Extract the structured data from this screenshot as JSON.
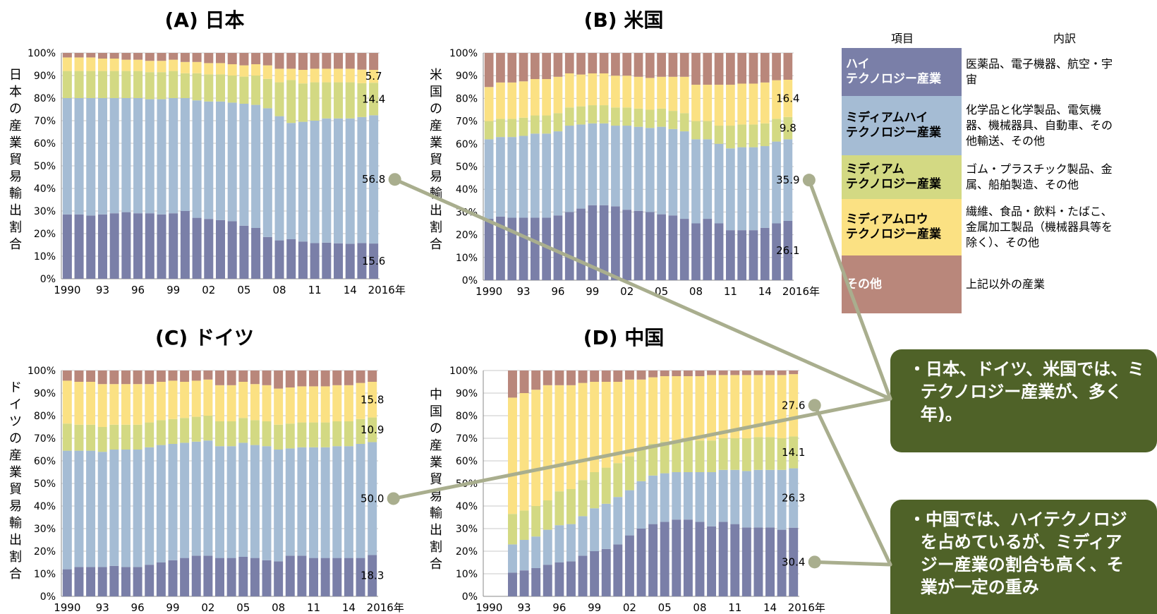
{
  "colors": {
    "high": "#7a7fa8",
    "medium_high": "#a5bcd4",
    "medium": "#d3d983",
    "medium_low": "#fbe183",
    "other": "#b9877b",
    "callout": "#4f6228",
    "connector": "#a9ae8e"
  },
  "chart_data": [
    {
      "type": "bar",
      "stacked": true,
      "title": "(A) 日本",
      "ylabel": "日本の産業貿易輸出割合",
      "ylim": [
        0,
        100
      ],
      "yticks": [
        "0%",
        "10%",
        "20%",
        "30%",
        "40%",
        "50%",
        "60%",
        "70%",
        "80%",
        "90%",
        "100%"
      ],
      "categories": [
        "1990",
        "91",
        "92",
        "93",
        "94",
        "95",
        "96",
        "97",
        "98",
        "99",
        "2000",
        "01",
        "02",
        "03",
        "04",
        "05",
        "06",
        "07",
        "08",
        "09",
        "10",
        "11",
        "12",
        "13",
        "14",
        "15",
        "2016"
      ],
      "xtick_labels": [
        "1990",
        "93",
        "96",
        "99",
        "02",
        "05",
        "08",
        "11",
        "14",
        "2016年"
      ],
      "xtick_indices": [
        0,
        3,
        6,
        9,
        12,
        15,
        18,
        21,
        24,
        26
      ],
      "series": [
        {
          "key": "high",
          "values": [
            28.5,
            28.5,
            28.0,
            28.5,
            29.0,
            29.5,
            29.0,
            29.0,
            28.5,
            29.0,
            30.0,
            27.0,
            26.5,
            26.0,
            25.5,
            23.5,
            22.5,
            18.5,
            17.0,
            17.5,
            16.5,
            15.8,
            16.0,
            15.7,
            15.5,
            15.8,
            15.6
          ]
        },
        {
          "key": "medium_high",
          "values": [
            51.5,
            51.5,
            52.0,
            51.5,
            51.0,
            50.5,
            51.0,
            50.5,
            51.0,
            51.0,
            50.0,
            52.0,
            52.0,
            52.5,
            52.5,
            54.0,
            54.5,
            57.0,
            55.0,
            51.5,
            53.0,
            54.2,
            55.0,
            55.3,
            55.5,
            55.8,
            56.8
          ]
        },
        {
          "key": "medium",
          "values": [
            12,
            12,
            12,
            12,
            12,
            12,
            12,
            12,
            12,
            12,
            11,
            12,
            12,
            12,
            12,
            12,
            13,
            13,
            15,
            19,
            17,
            17,
            16,
            16,
            16,
            15,
            14.4
          ]
        },
        {
          "key": "medium_low",
          "values": [
            6,
            6,
            6,
            5.5,
            5.5,
            5,
            5,
            5,
            5,
            5,
            5,
            5,
            5,
            5,
            5,
            5,
            5,
            6,
            6,
            5,
            6,
            6,
            6,
            6,
            6,
            6,
            5.7
          ]
        },
        {
          "key": "other",
          "values": [
            2,
            2,
            2,
            2.5,
            2.5,
            3,
            3,
            3.5,
            3.5,
            3,
            4,
            4,
            4.5,
            4.5,
            5,
            5.5,
            5,
            5.5,
            7,
            7,
            7.5,
            7,
            7,
            7,
            7,
            7.4,
            7.5
          ]
        }
      ],
      "value_labels": [
        {
          "series": "medium_low",
          "text": "5.7"
        },
        {
          "series": "medium",
          "text": "14.4"
        },
        {
          "series": "medium_high",
          "text": "56.8"
        },
        {
          "series": "high",
          "text": "15.6"
        }
      ]
    },
    {
      "type": "bar",
      "stacked": true,
      "title": "(B) 米国",
      "ylabel": "米国の産業貿易輸出割合",
      "ylim": [
        0,
        100
      ],
      "yticks": [
        "0%",
        "10%",
        "20%",
        "30%",
        "40%",
        "50%",
        "60%",
        "70%",
        "80%",
        "90%",
        "100%"
      ],
      "categories": [
        "1990",
        "91",
        "92",
        "93",
        "94",
        "95",
        "96",
        "97",
        "98",
        "99",
        "2000",
        "01",
        "02",
        "03",
        "04",
        "05",
        "06",
        "07",
        "08",
        "09",
        "10",
        "11",
        "12",
        "13",
        "14",
        "15",
        "2016"
      ],
      "xtick_labels": [
        "1990",
        "93",
        "96",
        "99",
        "02",
        "05",
        "08",
        "11",
        "14",
        "2016年"
      ],
      "xtick_indices": [
        0,
        3,
        6,
        9,
        12,
        15,
        18,
        21,
        24,
        26
      ],
      "series": [
        {
          "key": "high",
          "values": [
            27,
            28,
            27.5,
            27.5,
            27.5,
            27.5,
            28.5,
            30,
            31.5,
            33,
            33,
            32.5,
            31,
            30.5,
            30,
            29,
            28.5,
            27,
            25,
            27,
            25,
            22,
            22,
            22,
            23,
            25,
            26.1
          ]
        },
        {
          "key": "medium_high",
          "values": [
            35,
            35,
            35.5,
            36,
            37,
            37,
            37,
            38,
            37,
            36,
            36,
            35.5,
            37,
            37,
            37,
            38.5,
            38,
            38.5,
            37,
            35,
            35,
            36,
            36.5,
            36.5,
            36,
            36,
            35.9
          ]
        },
        {
          "key": "medium",
          "values": [
            8,
            8,
            8,
            8,
            8,
            8,
            8,
            8,
            8,
            8,
            8,
            8,
            8,
            8,
            8,
            8,
            8,
            8,
            8,
            8,
            8,
            10,
            10,
            10,
            10,
            10,
            9.8
          ]
        },
        {
          "key": "medium_low",
          "values": [
            15,
            16,
            16,
            16,
            16,
            16,
            16,
            15,
            14,
            14,
            14,
            14,
            14,
            14,
            14,
            14,
            15,
            16,
            16,
            16,
            18,
            18,
            18,
            18,
            18,
            17,
            16.4
          ]
        },
        {
          "key": "other",
          "values": [
            15,
            13,
            13,
            12.5,
            11.5,
            11.5,
            10.5,
            9,
            9.5,
            9,
            9,
            10,
            10,
            10.5,
            11,
            10.5,
            10.5,
            10.5,
            14,
            14,
            14,
            14,
            13.5,
            13.5,
            13,
            12,
            11.8
          ]
        }
      ],
      "value_labels": [
        {
          "series": "medium_low",
          "text": "16.4"
        },
        {
          "series": "medium",
          "text": "9.8"
        },
        {
          "series": "medium_high",
          "text": "35.9"
        },
        {
          "series": "high",
          "text": "26.1"
        }
      ]
    },
    {
      "type": "bar",
      "stacked": true,
      "title": "(C) ドイツ",
      "ylabel": "ドイツの産業貿易輸出割合",
      "ylim": [
        0,
        100
      ],
      "yticks": [
        "0%",
        "10%",
        "20%",
        "30%",
        "40%",
        "50%",
        "60%",
        "70%",
        "80%",
        "90%",
        "100%"
      ],
      "categories": [
        "1990",
        "91",
        "92",
        "93",
        "94",
        "95",
        "96",
        "97",
        "98",
        "99",
        "2000",
        "01",
        "02",
        "03",
        "04",
        "05",
        "06",
        "07",
        "08",
        "09",
        "10",
        "11",
        "12",
        "13",
        "14",
        "15",
        "2016"
      ],
      "xtick_labels": [
        "1990",
        "93",
        "96",
        "99",
        "02",
        "05",
        "08",
        "11",
        "14",
        "2016年"
      ],
      "xtick_indices": [
        0,
        3,
        6,
        9,
        12,
        15,
        18,
        21,
        24,
        26
      ],
      "series": [
        {
          "key": "high",
          "values": [
            12,
            13,
            13,
            13,
            13.5,
            13,
            13,
            14,
            15,
            16,
            17,
            18,
            18,
            17,
            17,
            17.5,
            17,
            16,
            15.5,
            18,
            18,
            17,
            17,
            17,
            17,
            17,
            18.3
          ]
        },
        {
          "key": "medium_high",
          "values": [
            52.5,
            51.5,
            51.5,
            51,
            51.5,
            52,
            52,
            52,
            52,
            51.5,
            51,
            50.5,
            51,
            49.5,
            49.5,
            50.5,
            50,
            50.5,
            49.5,
            47.5,
            48,
            49,
            49,
            49.5,
            49.5,
            50.5,
            50
          ]
        },
        {
          "key": "medium",
          "values": [
            12,
            11.5,
            11.5,
            11,
            11,
            11,
            11,
            11,
            11,
            11,
            11,
            11,
            11,
            11,
            11,
            11,
            11,
            11,
            11,
            11,
            11,
            11,
            11,
            11,
            11,
            11,
            10.9
          ]
        },
        {
          "key": "medium_low",
          "values": [
            19,
            19,
            19,
            19,
            18,
            18,
            18,
            17,
            17,
            17,
            16,
            16,
            16,
            16,
            16,
            16,
            16,
            16,
            16,
            16,
            16,
            16,
            16,
            16,
            16,
            16,
            15.8
          ]
        },
        {
          "key": "other",
          "values": [
            4.5,
            5,
            5,
            6,
            6,
            6,
            6,
            6,
            5,
            4.5,
            5,
            4.5,
            4,
            6.5,
            6.5,
            5,
            6,
            6.5,
            8,
            7.5,
            7,
            7,
            7,
            6.5,
            6.5,
            5.5,
            5
          ]
        }
      ],
      "value_labels": [
        {
          "series": "medium_low",
          "text": "15.8"
        },
        {
          "series": "medium",
          "text": "10.9"
        },
        {
          "series": "medium_high",
          "text": "50.0"
        },
        {
          "series": "high",
          "text": "18.3"
        }
      ]
    },
    {
      "type": "bar",
      "stacked": true,
      "title": "(D) 中国",
      "ylabel": "中国の産業貿易輸出割合",
      "ylim": [
        0,
        100
      ],
      "yticks": [
        "0%",
        "10%",
        "20%",
        "30%",
        "40%",
        "50%",
        "60%",
        "70%",
        "80%",
        "90%",
        "100%"
      ],
      "categories": [
        "1990",
        "91",
        "92",
        "93",
        "94",
        "95",
        "96",
        "97",
        "98",
        "99",
        "2000",
        "01",
        "02",
        "03",
        "04",
        "05",
        "06",
        "07",
        "08",
        "09",
        "10",
        "11",
        "12",
        "13",
        "14",
        "15",
        "2016"
      ],
      "xtick_labels": [
        "1990",
        "93",
        "96",
        "99",
        "02",
        "05",
        "08",
        "11",
        "14",
        "2016年"
      ],
      "xtick_indices": [
        0,
        3,
        6,
        9,
        12,
        15,
        18,
        21,
        24,
        26
      ],
      "series": [
        {
          "key": "high",
          "values": [
            0,
            0,
            10.5,
            11.5,
            12.5,
            14,
            15,
            15.5,
            18,
            20,
            21,
            23,
            27,
            30,
            32,
            33,
            34,
            34,
            33,
            31,
            33,
            32,
            30.5,
            30.5,
            30.5,
            29.5,
            30.4
          ]
        },
        {
          "key": "medium_high",
          "values": [
            0,
            0,
            12.5,
            13.5,
            14,
            15.5,
            16.5,
            16.5,
            17.5,
            19,
            20,
            21,
            20,
            21,
            21.5,
            21.5,
            21,
            21,
            22,
            24,
            23,
            24,
            25,
            25.5,
            25.5,
            26.5,
            26.3
          ]
        },
        {
          "key": "medium",
          "values": [
            0,
            0,
            13.5,
            13,
            13.5,
            13,
            15,
            15.5,
            16,
            16,
            16,
            15,
            15,
            14,
            14,
            14,
            14,
            14,
            14,
            14,
            14,
            14,
            14.5,
            14.5,
            14.5,
            14,
            14.1
          ]
        },
        {
          "key": "medium_low",
          "values": [
            0,
            0,
            51.5,
            52,
            51.5,
            51,
            47,
            46,
            43,
            40,
            38,
            36,
            34,
            31,
            29.5,
            29,
            28.5,
            28.5,
            28.5,
            29,
            28,
            28,
            28,
            27.5,
            27.5,
            28,
            27.6
          ]
        },
        {
          "key": "other",
          "values": [
            0,
            0,
            12,
            10,
            8.5,
            6.5,
            6.5,
            6.5,
            5.5,
            5,
            5,
            5,
            4,
            4,
            3,
            2.5,
            2.5,
            2.5,
            2.5,
            2,
            2,
            2,
            2,
            2,
            2,
            2,
            1.6
          ]
        }
      ],
      "value_labels": [
        {
          "series": "medium_low",
          "text": "27.6"
        },
        {
          "series": "medium",
          "text": "14.1"
        },
        {
          "series": "medium_high",
          "text": "26.3"
        },
        {
          "series": "high",
          "text": "30.4"
        }
      ]
    }
  ],
  "legend_table": {
    "header_item": "項目",
    "header_breakdown": "内訳",
    "rows": [
      {
        "key": "high",
        "category": "ハイ\nテクノロジー産業",
        "breakdown": "医薬品、電子機器、航空・宇\n宙"
      },
      {
        "key": "medium_high",
        "category": "ミディアムハイ\nテクノロジー産業",
        "breakdown": "化学品と化学製品、電気機\n器、機械器具、自動車、その\n他輸送、その他"
      },
      {
        "key": "medium",
        "category": "ミディアム\nテクノロジー産業",
        "breakdown": "ゴム・プラスチック製品、金\n属、船舶製造、その他"
      },
      {
        "key": "medium_low",
        "category": "ミディアムロウ\nテクノロジー産業",
        "breakdown": "繊維、食品・飲料・たばこ、\n金属加工製品（機械器具等を\n除く）、その他"
      },
      {
        "key": "other",
        "category": "その他",
        "breakdown": "上記以外の産業"
      }
    ]
  },
  "callouts": {
    "upper": "・日本、ドイツ、米国では、ミ\n  テクノロジー産業が、多く\n  年)。",
    "lower": "・中国では、ハイテクノロジ\n  を占めているが、ミディア\n  ジー産業の割合も高く、そ\n  業が一定の重み"
  }
}
